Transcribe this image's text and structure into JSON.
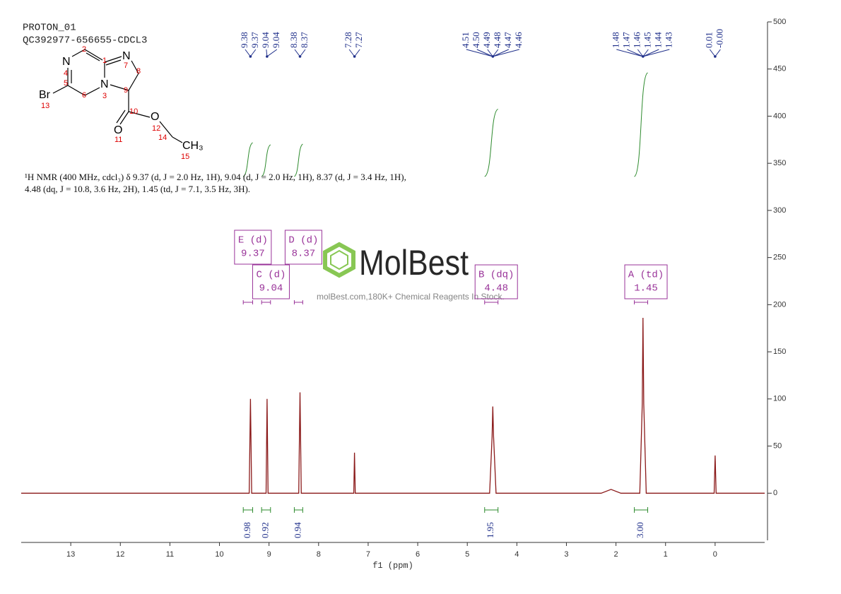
{
  "chart_data": {
    "type": "nmr",
    "header": [
      "PROTON_01",
      "QC392977-656655-CDCL3"
    ],
    "description": "¹H NMR (400 MHz, cdcl₃) δ 9.37 (d, J = 2.0 Hz, 1H), 9.04 (d, J = 2.0 Hz, 1H), 8.37 (d, J = 3.4 Hz, 1H), 4.48 (dq, J = 10.8, 3.6 Hz, 2H), 1.45 (td, J = 7.1, 3.5 Hz, 3H).",
    "structure": {
      "atoms": [
        "N",
        "N",
        "N",
        "Br",
        "O",
        "O",
        "CH₃"
      ],
      "atom_numbers": [
        "1",
        "2",
        "3",
        "4",
        "5",
        "6",
        "7",
        "8",
        "9",
        "10",
        "11",
        "12",
        "13",
        "14",
        "15"
      ]
    },
    "x_label": "f1 (ppm)",
    "xlim": [
      14,
      -1
    ],
    "xticks": [
      13,
      12,
      11,
      10,
      9,
      8,
      7,
      6,
      5,
      4,
      3,
      2,
      1,
      0
    ],
    "ylim": [
      -50,
      500
    ],
    "yticks": [
      0,
      50,
      100,
      150,
      200,
      250,
      300,
      350,
      400,
      450,
      500
    ],
    "color": "#8b1a1a",
    "x": [
      14,
      9.4,
      9.375,
      9.35,
      9.06,
      9.04,
      9.02,
      8.4,
      8.375,
      8.35,
      7.29,
      7.275,
      7.26,
      4.55,
      4.5,
      4.485,
      4.47,
      4.42,
      2.3,
      2.1,
      1.9,
      1.52,
      1.47,
      1.455,
      1.44,
      1.39,
      0.02,
      0,
      -0.02,
      -1
    ],
    "values": [
      0,
      0,
      100,
      0,
      0,
      100,
      0,
      0,
      107,
      0,
      0,
      43,
      0,
      0,
      60,
      92,
      60,
      0,
      0,
      4,
      0,
      0,
      95,
      186,
      95,
      0,
      0,
      40,
      0,
      0
    ],
    "peak_groups": [
      {
        "x": 9.375,
        "labels": [
          "9.38",
          "9.37"
        ]
      },
      {
        "x": 9.04,
        "labels": [
          "9.04",
          "9.04"
        ]
      },
      {
        "x": 8.375,
        "labels": [
          "8.38",
          "8.37"
        ]
      },
      {
        "x": 7.275,
        "labels": [
          "7.28",
          "7.27"
        ]
      },
      {
        "x": 4.485,
        "labels": [
          "4.51",
          "4.50",
          "4.49",
          "4.48",
          "4.47",
          "4.46"
        ]
      },
      {
        "x": 1.455,
        "labels": [
          "1.48",
          "1.47",
          "1.46",
          "1.45",
          "1.44",
          "1.43"
        ]
      },
      {
        "x": 0,
        "labels": [
          "0.01",
          "-0.00"
        ]
      }
    ],
    "integrals": {
      "ranges": [
        [
          9.52,
          9.33
        ],
        [
          9.15,
          8.97
        ],
        [
          8.49,
          8.32
        ],
        [
          4.65,
          4.38
        ],
        [
          1.63,
          1.36
        ]
      ],
      "values": [
        0.98,
        0.92,
        0.94,
        1.95,
        3
      ],
      "value_labels": [
        "0.98",
        "0.92",
        "0.94",
        "1.95",
        "3.00"
      ]
    },
    "multiplets": [
      {
        "label": "E (d)",
        "shift": 9.37,
        "range": [
          9.52,
          9.33
        ]
      },
      {
        "label": "C (d)",
        "shift": 9.04,
        "range": [
          9.15,
          8.97
        ]
      },
      {
        "label": "D (d)",
        "shift": 8.37,
        "range": [
          8.49,
          8.32
        ]
      },
      {
        "label": "B (dq)",
        "shift": 4.48,
        "range": [
          4.65,
          4.38
        ]
      },
      {
        "label": "A (td)",
        "shift": 1.45,
        "range": [
          1.63,
          1.36
        ]
      }
    ],
    "watermark": {
      "brand": "MolBest",
      "tagline": "molBest.com,180K+ Chemical Reagents In Stock."
    }
  }
}
